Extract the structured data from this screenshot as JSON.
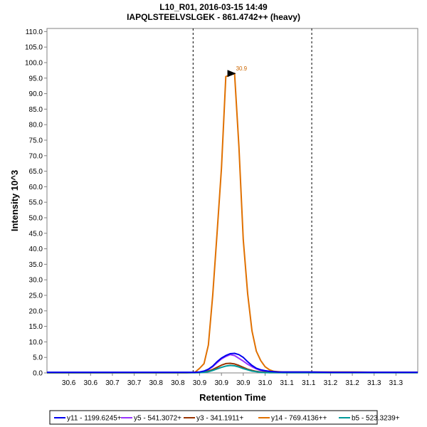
{
  "chart_data": {
    "type": "line",
    "title": "L10_R01, 2016-03-15 14:49",
    "subtitle": "IAPQLSTEELVSLGEK - 861.4742++ (heavy)",
    "xlabel": "Retention Time",
    "ylabel": "Intensity 10^3",
    "xlim": [
      30.5,
      31.35
    ],
    "ylim": [
      0,
      111
    ],
    "x_ticks": [
      30.55,
      30.6,
      30.65,
      30.7,
      30.75,
      30.8,
      30.85,
      30.9,
      30.95,
      31.0,
      31.05,
      31.1,
      31.15,
      31.2,
      31.25,
      31.3
    ],
    "x_tick_labels": [
      "30.6",
      "30.6",
      "30.7",
      "30.7",
      "30.8",
      "30.8",
      "30.9",
      "30.9",
      "30.9",
      "31.0",
      "31.1",
      "31.1",
      "31.2",
      "31.2",
      "31.3",
      "31.3"
    ],
    "y_ticks": [
      0,
      5,
      10,
      15,
      20,
      25,
      30,
      35,
      40,
      45,
      50,
      55,
      60,
      65,
      70,
      75,
      80,
      85,
      90,
      95,
      100,
      105,
      110
    ],
    "y_tick_labels": [
      "0.0",
      "5.0",
      "10.0",
      "15.0",
      "20.0",
      "25.0",
      "30.0",
      "35.0",
      "40.0",
      "45.0",
      "50.0",
      "55.0",
      "60.0",
      "65.0",
      "70.0",
      "75.0",
      "80.0",
      "85.0",
      "90.0",
      "95.0",
      "100.0",
      "105.0",
      "110.0"
    ],
    "boundaries": [
      30.835,
      31.107
    ],
    "peak_label": {
      "text": "30.9",
      "x": 30.93,
      "y": 96.5
    },
    "legend_position": "bottom",
    "x": [
      30.5,
      30.55,
      30.6,
      30.65,
      30.7,
      30.75,
      30.8,
      30.82,
      30.83,
      30.84,
      30.85,
      30.86,
      30.87,
      30.88,
      30.89,
      30.9,
      30.91,
      30.92,
      30.93,
      30.94,
      30.95,
      30.96,
      30.97,
      30.98,
      30.99,
      31.0,
      31.01,
      31.02,
      31.03,
      31.04,
      31.05,
      31.07,
      31.1,
      31.15,
      31.2,
      31.25,
      31.3,
      31.35
    ],
    "series": [
      {
        "name": "y11 - 1199.6245+",
        "color": "#0000ee",
        "values": [
          0.2,
          0.2,
          0.2,
          0.2,
          0.2,
          0.2,
          0.2,
          0.2,
          0.2,
          0.2,
          0.3,
          0.6,
          1.2,
          2.2,
          3.6,
          4.8,
          5.6,
          6.2,
          6.3,
          5.9,
          5.0,
          3.6,
          2.4,
          1.5,
          1.0,
          0.7,
          0.5,
          0.4,
          0.3,
          0.3,
          0.3,
          0.3,
          0.3,
          0.2,
          0.2,
          0.2,
          0.2,
          0.2
        ]
      },
      {
        "name": "y5 - 541.3072+",
        "color": "#9933ff",
        "values": [
          0.1,
          0.1,
          0.1,
          0.1,
          0.1,
          0.1,
          0.1,
          0.1,
          0.1,
          0.1,
          0.2,
          0.5,
          1.1,
          2.0,
          3.3,
          4.5,
          5.3,
          5.9,
          5.6,
          4.7,
          3.8,
          2.8,
          2.0,
          1.3,
          0.8,
          0.5,
          0.3,
          0.2,
          0.2,
          0.1,
          0.1,
          0.1,
          0.1,
          0.1,
          0.1,
          0.1,
          0.1,
          0.1
        ]
      },
      {
        "name": "y3 - 341.1911+",
        "color": "#993300",
        "values": [
          0.1,
          0.1,
          0.1,
          0.1,
          0.1,
          0.1,
          0.1,
          0.1,
          0.1,
          0.1,
          0.1,
          0.3,
          0.6,
          1.1,
          1.8,
          2.5,
          3.0,
          3.1,
          2.9,
          2.4,
          1.8,
          1.2,
          0.8,
          0.5,
          0.3,
          0.2,
          0.1,
          0.1,
          0.1,
          0.1,
          0.1,
          0.1,
          0.1,
          0.1,
          0.1,
          0.1,
          0.1,
          0.1
        ]
      },
      {
        "name": "y14 - 769.4136++",
        "color": "#e07000",
        "values": [
          0.0,
          0.0,
          0.0,
          0.0,
          0.0,
          0.0,
          0.0,
          0.0,
          0.1,
          0.3,
          1.5,
          3.0,
          9.0,
          25.0,
          45.0,
          66.0,
          95.5,
          96.0,
          96.5,
          73.0,
          43.0,
          25.5,
          13.5,
          7.0,
          4.0,
          2.0,
          1.0,
          0.5,
          0.4,
          0.3,
          0.3,
          0.3,
          0.3,
          0.3,
          0.3,
          0.2,
          0.2,
          0.2
        ]
      },
      {
        "name": "b5 - 523.3239+",
        "color": "#009999",
        "values": [
          0.1,
          0.1,
          0.1,
          0.1,
          0.1,
          0.1,
          0.1,
          0.1,
          0.1,
          0.1,
          0.1,
          0.2,
          0.4,
          0.8,
          1.3,
          1.8,
          2.2,
          2.4,
          2.3,
          1.9,
          1.4,
          1.0,
          0.6,
          0.4,
          0.2,
          0.1,
          0.1,
          0.1,
          0.1,
          0.1,
          0.1,
          0.1,
          0.1,
          0.1,
          0.1,
          0.1,
          0.1,
          0.1
        ]
      }
    ]
  }
}
